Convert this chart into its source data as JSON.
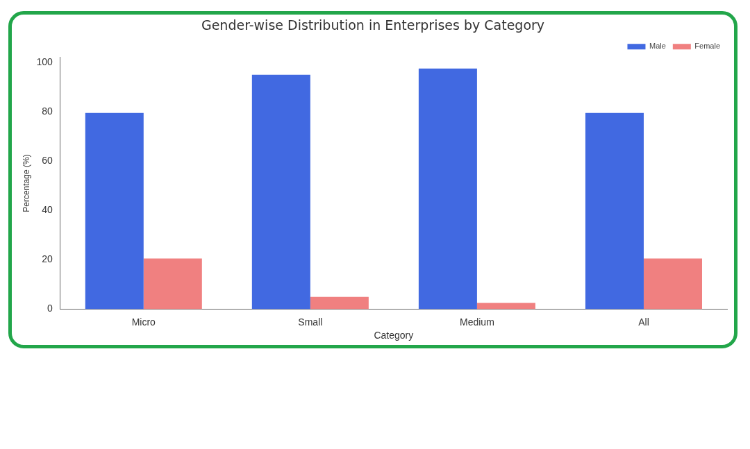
{
  "chart_data": {
    "type": "bar",
    "title": "Gender-wise Distribution in Enterprises by Category",
    "xlabel": "Category",
    "ylabel": "Percentage (%)",
    "categories": [
      "Micro",
      "Small",
      "Medium",
      "All"
    ],
    "series": [
      {
        "name": "Male",
        "color": "#4169e1",
        "values": [
          79.5,
          95,
          97.5,
          79.5
        ]
      },
      {
        "name": "Female",
        "color": "#f08080",
        "values": [
          20.5,
          5,
          2.5,
          20.5
        ]
      }
    ],
    "ylim": [
      0,
      102
    ],
    "yticks": [
      0,
      20,
      40,
      60,
      80,
      100
    ],
    "grid": false,
    "legend": "top right"
  }
}
